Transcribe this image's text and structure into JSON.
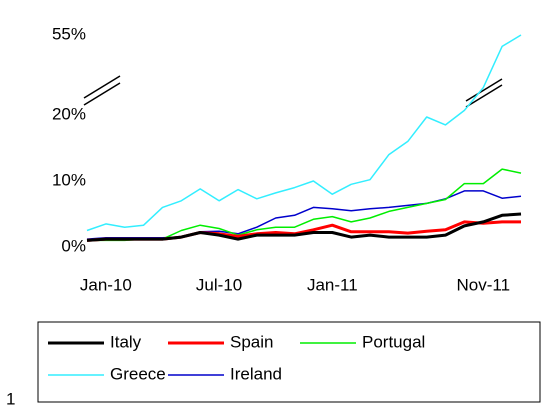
{
  "chart_data": {
    "type": "line",
    "categories": [
      null,
      "Jan-10",
      null,
      null,
      null,
      null,
      null,
      "Jul-10",
      null,
      null,
      null,
      null,
      null,
      "Jan-11",
      null,
      null,
      null,
      null,
      null,
      null,
      null,
      "Nov-11",
      null,
      null
    ],
    "series": [
      {
        "name": "Italy",
        "color": "#000000",
        "values": [
          1,
          1.2,
          1.2,
          1.2,
          1.2,
          1.5,
          2.2,
          1.8,
          1.2,
          1.8,
          1.8,
          1.8,
          2.2,
          2.2,
          1.5,
          1.8,
          1.5,
          1.5,
          1.5,
          1.8,
          3.2,
          3.8,
          4.8,
          5
        ]
      },
      {
        "name": "Spain",
        "color": "#ff0000",
        "values": [
          1,
          1.2,
          1.2,
          1.2,
          1.2,
          1.5,
          2.2,
          2,
          1.6,
          2,
          2.2,
          2,
          2.6,
          3.3,
          2.3,
          2.3,
          2.3,
          2.1,
          2.4,
          2.6,
          3.8,
          3.6,
          3.8,
          3.8
        ]
      },
      {
        "name": "Portugal",
        "color": "#00ee00",
        "values": [
          1,
          1,
          1,
          1.2,
          1.2,
          2.5,
          3.3,
          2.8,
          1.8,
          2.6,
          3,
          3,
          4.2,
          4.6,
          3.8,
          4.4,
          5.4,
          6,
          6.6,
          7.2,
          9.6,
          9.6,
          11.8,
          11.2
        ]
      },
      {
        "name": "Greece",
        "color": "#33eeff",
        "values": [
          2.5,
          3.5,
          3,
          3.3,
          6,
          7,
          8.8,
          7,
          8.7,
          7.3,
          8.2,
          9,
          10,
          8,
          9.5,
          10.2,
          14,
          16,
          19.7,
          18.5,
          22,
          32,
          50,
          55
        ]
      },
      {
        "name": "Ireland",
        "color": "#0000cc",
        "values": [
          1.2,
          1.4,
          1.4,
          1.4,
          1.4,
          1.5,
          2.3,
          2.4,
          2,
          3,
          4.4,
          4.8,
          6,
          5.8,
          5.5,
          5.8,
          6,
          6.3,
          6.6,
          7.3,
          8.5,
          8.5,
          7.4,
          7.7
        ]
      }
    ],
    "ylim": [
      0,
      55
    ],
    "yticks": [
      {
        "value": 0,
        "label": "0%"
      },
      {
        "value": 10,
        "label": "10%"
      },
      {
        "value": 20,
        "label": "20%"
      },
      {
        "value": 55,
        "label": "55%"
      }
    ],
    "footnote": "1"
  }
}
